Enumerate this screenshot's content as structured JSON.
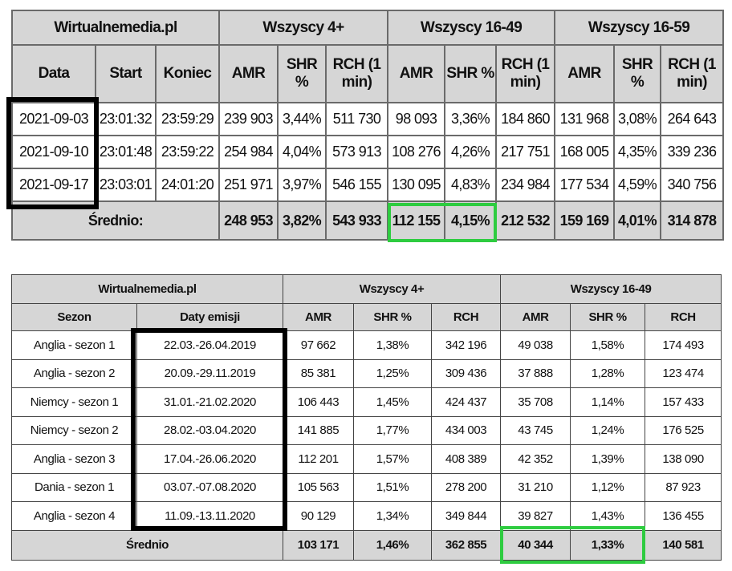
{
  "tables": [
    {
      "groups": [
        "Wirtualnemedia.pl",
        "Wszyscy 4+",
        "Wszyscy 16-49",
        "Wszyscy 16-59"
      ],
      "columns": [
        "Data",
        "Start",
        "Koniec",
        "AMR",
        "SHR %",
        "RCH (1 min)",
        "AMR",
        "SHR %",
        "RCH (1 min)",
        "AMR",
        "SHR %",
        "RCH (1 min)"
      ],
      "rows": [
        [
          "2021-09-03",
          "23:01:32",
          "23:59:29",
          "239 903",
          "3,44%",
          "511 730",
          "98 093",
          "3,36%",
          "184 860",
          "131 968",
          "3,08%",
          "264 643"
        ],
        [
          "2021-09-10",
          "23:01:48",
          "23:59:22",
          "254 984",
          "4,04%",
          "573 913",
          "108 276",
          "4,26%",
          "217 751",
          "168 005",
          "4,35%",
          "339 236"
        ],
        [
          "2021-09-17",
          "23:03:01",
          "24:01:20",
          "251 971",
          "3,97%",
          "546 155",
          "130 095",
          "4,83%",
          "234 984",
          "177 534",
          "4,59%",
          "340 756"
        ]
      ],
      "average_label": "Średnio:",
      "average": [
        "248 953",
        "3,82%",
        "543 933",
        "112 155",
        "4,15%",
        "212 532",
        "159 169",
        "4,01%",
        "314 878"
      ]
    },
    {
      "groups": [
        "Wirtualnemedia.pl",
        "Wszyscy 4+",
        "Wszyscy 16-49"
      ],
      "columns": [
        "Sezon",
        "Daty emisji",
        "AMR",
        "SHR %",
        "RCH",
        "AMR",
        "SHR %",
        "RCH"
      ],
      "rows": [
        [
          "Anglia - sezon 1",
          "22.03.-26.04.2019",
          "97 662",
          "1,38%",
          "342 196",
          "49 038",
          "1,58%",
          "174 493"
        ],
        [
          "Anglia - sezon 2",
          "20.09.-29.11.2019",
          "85 381",
          "1,25%",
          "309 436",
          "37 888",
          "1,28%",
          "123 474"
        ],
        [
          "Niemcy - sezon 1",
          "31.01.-21.02.2020",
          "106 443",
          "1,45%",
          "424 437",
          "35 708",
          "1,14%",
          "157 433"
        ],
        [
          "Niemcy - sezon 2",
          "28.02.-03.04.2020",
          "141 885",
          "1,77%",
          "434 003",
          "43 745",
          "1,24%",
          "176 525"
        ],
        [
          "Anglia - sezon 3",
          "17.04.-26.06.2020",
          "112 201",
          "1,57%",
          "408 389",
          "42 352",
          "1,39%",
          "138 090"
        ],
        [
          "Dania - sezon 1",
          "03.07.-07.08.2020",
          "105 563",
          "1,51%",
          "278 200",
          "31 210",
          "1,12%",
          "87 923"
        ],
        [
          "Anglia - sezon 4",
          "11.09.-13.11.2020",
          "90 129",
          "1,34%",
          "349 844",
          "39 827",
          "1,43%",
          "136 455"
        ]
      ],
      "average_label": "Średnio",
      "average": [
        "103 171",
        "1,46%",
        "362 855",
        "40 344",
        "1,33%",
        "140 581"
      ]
    }
  ]
}
